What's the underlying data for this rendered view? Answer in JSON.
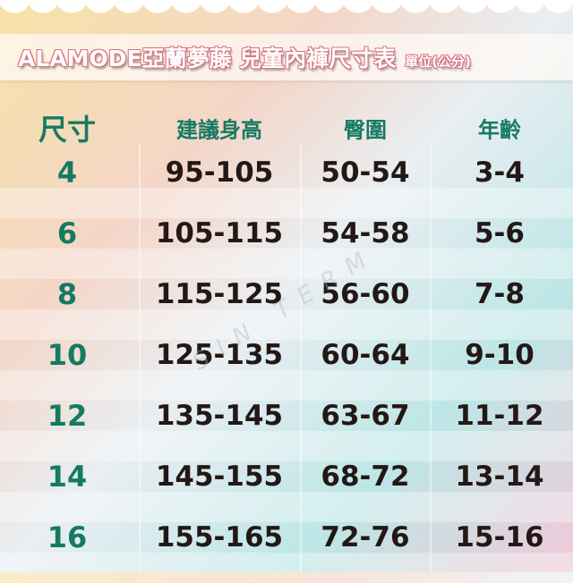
{
  "title": {
    "main": "ALAMODE亞蘭夢藤  兒童內褲尺寸表",
    "unit": "單位(公分)"
  },
  "table": {
    "headers": [
      "尺寸",
      "建議身高",
      "臀圍",
      "年齡"
    ],
    "rows": [
      [
        "4",
        "95-105",
        "50-54",
        "3-4"
      ],
      [
        "6",
        "105-115",
        "54-58",
        "5-6"
      ],
      [
        "8",
        "115-125",
        "56-60",
        "7-8"
      ],
      [
        "10",
        "125-135",
        "60-64",
        "9-10"
      ],
      [
        "12",
        "135-145",
        "63-67",
        "11-12"
      ],
      [
        "14",
        "145-155",
        "68-72",
        "13-14"
      ],
      [
        "16",
        "155-165",
        "72-76",
        "15-16"
      ]
    ]
  },
  "watermark": "SIN TERM",
  "colors": {
    "size_text": "#157a62",
    "value_text": "#231815",
    "title_outline": "#d9707e"
  }
}
